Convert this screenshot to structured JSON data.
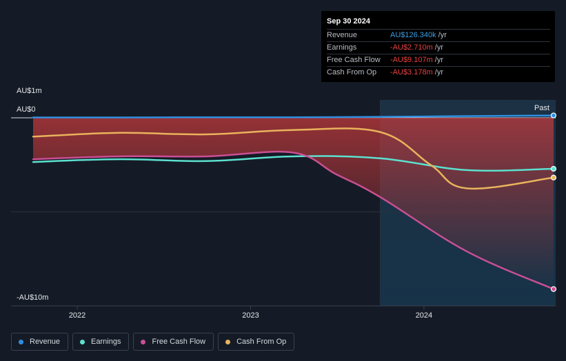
{
  "tooltip": {
    "date": "Sep 30 2024",
    "rows": [
      {
        "label": "Revenue",
        "value": "AU$126.340k",
        "unit": "/yr"
      },
      {
        "label": "Earnings",
        "value": "-AU$2.710m",
        "unit": "/yr"
      },
      {
        "label": "Free Cash Flow",
        "value": "-AU$9.107m",
        "unit": "/yr"
      },
      {
        "label": "Cash From Op",
        "value": "-AU$3.178m",
        "unit": "/yr"
      }
    ]
  },
  "axis": {
    "y_top": "AU$1m",
    "y_zero": "AU$0",
    "y_bottom": "-AU$10m",
    "past_label": "Past"
  },
  "colors": {
    "revenue": "#2f8fe0",
    "earnings": "#5ce1cf",
    "free_cash_flow": "#c94f94",
    "cash_from_op": "#e9b35d",
    "negative_fill": "#c0393b"
  },
  "legend": [
    {
      "name": "Revenue",
      "color": "#2f8fe0"
    },
    {
      "name": "Earnings",
      "color": "#5ce1cf"
    },
    {
      "name": "Free Cash Flow",
      "color": "#c94f94"
    },
    {
      "name": "Cash From Op",
      "color": "#e9b35d"
    }
  ],
  "chart_data": {
    "type": "line",
    "ylim": [
      -10,
      1
    ],
    "y_unit": "AU$m",
    "x_ticks": [
      "2022",
      "2023",
      "2024"
    ],
    "past_start": "2023-10-01",
    "series": [
      {
        "name": "Revenue",
        "points": [
          [
            "2021-09-30",
            0.02
          ],
          [
            "2022-03-31",
            0.02
          ],
          [
            "2022-09-30",
            0.03
          ],
          [
            "2023-03-31",
            0.03
          ],
          [
            "2023-09-30",
            0.05
          ],
          [
            "2024-03-31",
            0.09
          ],
          [
            "2024-09-30",
            0.126
          ]
        ]
      },
      {
        "name": "Earnings",
        "points": [
          [
            "2021-09-30",
            -2.35
          ],
          [
            "2022-03-31",
            -2.2
          ],
          [
            "2022-09-30",
            -2.3
          ],
          [
            "2023-03-31",
            -2.05
          ],
          [
            "2023-09-30",
            -2.15
          ],
          [
            "2024-03-31",
            -2.78
          ],
          [
            "2024-09-30",
            -2.71
          ]
        ]
      },
      {
        "name": "Free Cash Flow",
        "points": [
          [
            "2021-09-30",
            -2.2
          ],
          [
            "2022-03-31",
            -2.05
          ],
          [
            "2022-09-30",
            -2.05
          ],
          [
            "2023-03-31",
            -1.85
          ],
          [
            "2023-06-30",
            -3.0
          ],
          [
            "2023-09-30",
            -4.2
          ],
          [
            "2024-03-31",
            -7.1
          ],
          [
            "2024-09-30",
            -9.107
          ]
        ]
      },
      {
        "name": "Cash From Op",
        "points": [
          [
            "2021-09-30",
            -1.0
          ],
          [
            "2022-03-31",
            -0.8
          ],
          [
            "2022-09-30",
            -0.88
          ],
          [
            "2023-03-31",
            -0.65
          ],
          [
            "2023-09-30",
            -0.75
          ],
          [
            "2024-01-15",
            -2.5
          ],
          [
            "2024-03-31",
            -3.75
          ],
          [
            "2024-09-30",
            -3.178
          ]
        ]
      }
    ]
  }
}
